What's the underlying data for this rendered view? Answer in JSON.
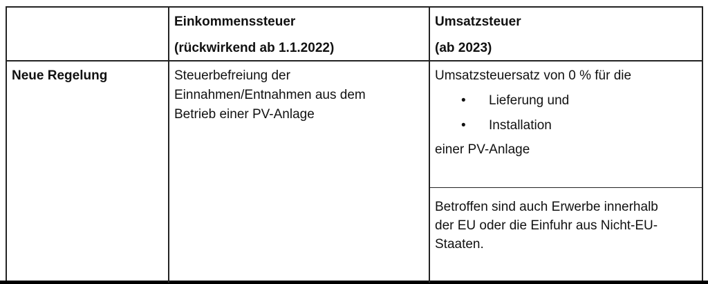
{
  "table": {
    "header": {
      "col1": "",
      "col2_line1": "Einkommenssteuer",
      "col2_line2": "(rückwirkend ab 1.1.2022)",
      "col3_line1": "Umsatzsteuer",
      "col3_line2": "(ab 2023)"
    },
    "row": {
      "label": "Neue Regelung",
      "est_lines": [
        "Steuerbefreiung der",
        "Einnahmen/Entnahmen aus dem",
        "Betrieb einer PV-Anlage"
      ],
      "ust_intro": "Umsatzsteuersatz von 0 % für die",
      "ust_bullets": [
        "Lieferung und",
        "Installation"
      ],
      "ust_outro": "einer PV-Anlage",
      "ust_note_lines": [
        "Betroffen sind auch Erwerbe innerhalb",
        "der EU oder die Einfuhr aus Nicht-EU-",
        "Staaten."
      ]
    }
  }
}
